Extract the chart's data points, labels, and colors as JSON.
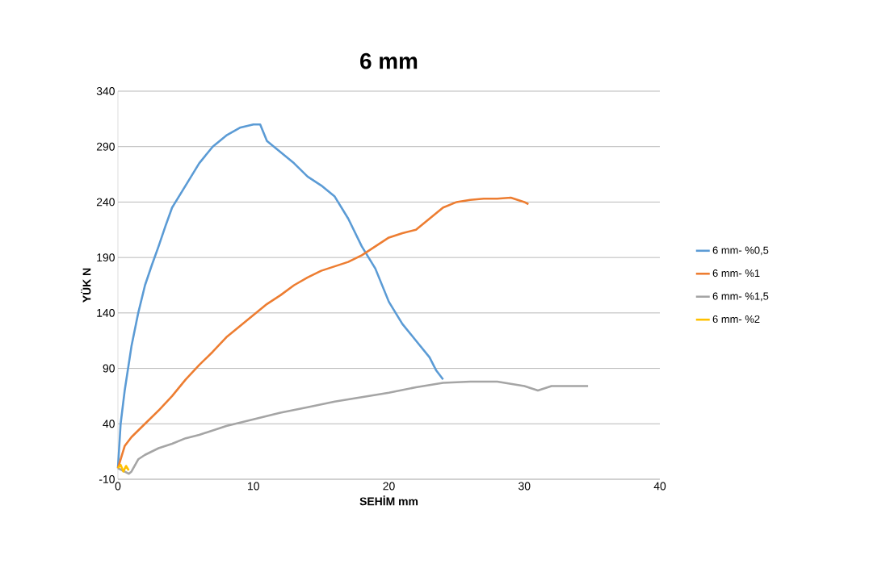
{
  "chart_data": {
    "type": "line",
    "title": "6 mm",
    "xlabel": "SEHİM mm",
    "ylabel": "YÜK N",
    "xlim": [
      0,
      40
    ],
    "xticks": [
      0,
      10,
      20,
      30,
      40
    ],
    "ylim": [
      -10,
      340
    ],
    "yticks": [
      -10,
      40,
      90,
      140,
      190,
      240,
      290,
      340
    ],
    "grid": "y",
    "legend": "right",
    "marker": "none",
    "line_style": "solid",
    "series": [
      {
        "name": "6 mm- %0,5",
        "color": "#5b9bd5",
        "x": [
          0,
          0.2,
          0.5,
          1,
          1.5,
          2,
          2.5,
          3,
          3.5,
          4,
          5,
          6,
          7,
          8,
          9,
          10,
          10.5,
          11,
          12,
          13,
          14,
          15,
          16,
          17,
          18,
          19,
          20,
          21,
          22,
          23,
          23.5,
          24
        ],
        "values": [
          0,
          40,
          70,
          110,
          140,
          165,
          183,
          200,
          218,
          235,
          255,
          275,
          290,
          300,
          307,
          310,
          310,
          295,
          285,
          275,
          263,
          255,
          245,
          225,
          200,
          180,
          150,
          130,
          115,
          100,
          88,
          80
        ]
      },
      {
        "name": "6 mm- %1",
        "color": "#ed7d31",
        "x": [
          0,
          0.5,
          1,
          2,
          3,
          4,
          5,
          6,
          7,
          8,
          9,
          10,
          11,
          12,
          13,
          14,
          15,
          16,
          17,
          18,
          19,
          20,
          21,
          22,
          23,
          24,
          25,
          26,
          27,
          28,
          29,
          30,
          30.3
        ],
        "values": [
          0,
          20,
          28,
          40,
          52,
          65,
          80,
          93,
          105,
          118,
          128,
          138,
          148,
          156,
          165,
          172,
          178,
          182,
          186,
          192,
          200,
          208,
          212,
          215,
          225,
          235,
          240,
          242,
          243,
          243,
          244,
          240,
          238
        ]
      },
      {
        "name": "6 mm- %1,5",
        "color": "#a5a5a5",
        "x": [
          0,
          0.8,
          1,
          1.5,
          2,
          3,
          4,
          5,
          6,
          8,
          10,
          12,
          14,
          16,
          18,
          20,
          22,
          24,
          26,
          28,
          30,
          31,
          32,
          34,
          34.7
        ],
        "values": [
          0,
          -5,
          -3,
          8,
          12,
          18,
          22,
          27,
          30,
          38,
          44,
          50,
          55,
          60,
          64,
          68,
          73,
          77,
          78,
          78,
          74,
          70,
          74,
          74,
          74
        ]
      },
      {
        "name": "6 mm- %2",
        "color": "#ffc000",
        "x": [
          0,
          0.2,
          0.4,
          0.6,
          0.8
        ],
        "values": [
          0,
          3,
          -3,
          2,
          -2
        ]
      }
    ]
  }
}
